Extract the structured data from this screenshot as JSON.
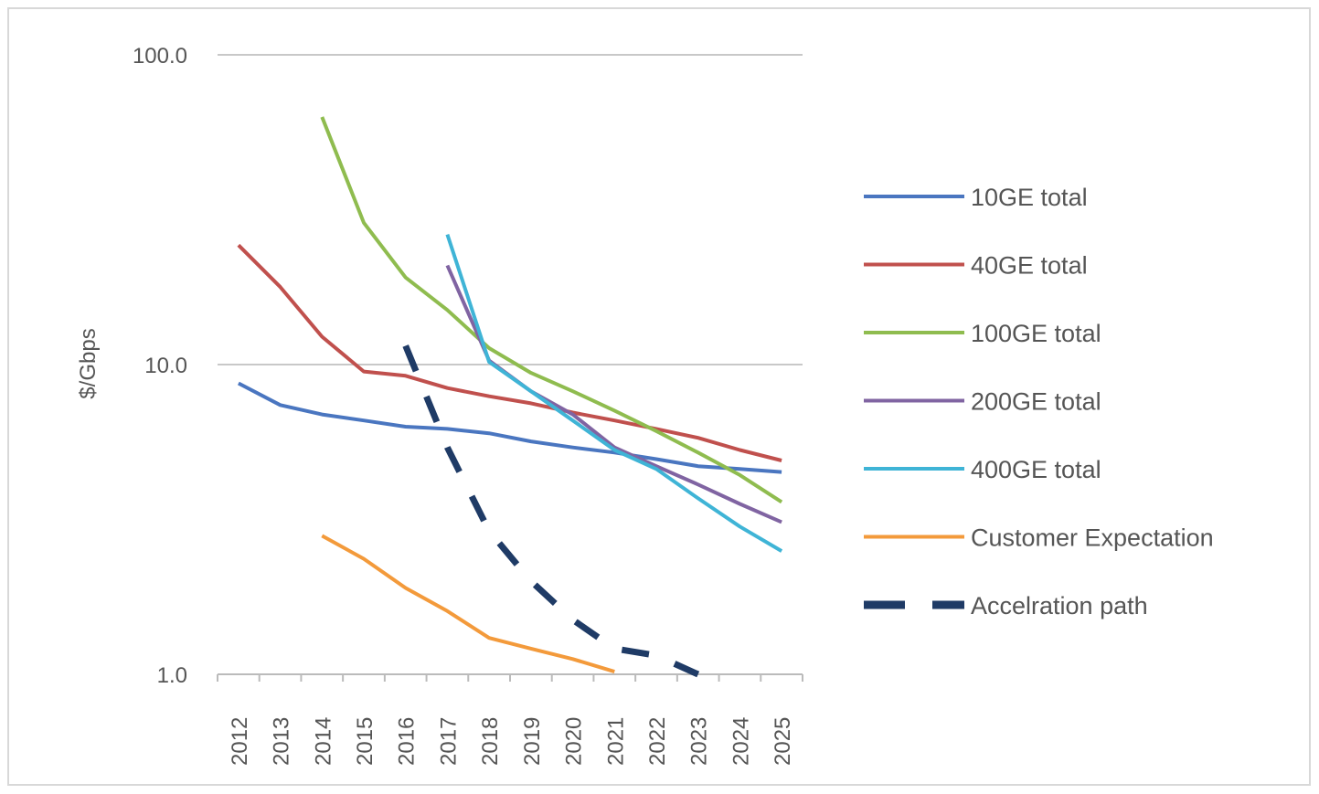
{
  "chart_data": {
    "type": "line",
    "title": "",
    "xlabel": "",
    "ylabel": "$/Gbps",
    "yscale": "log",
    "ylim": [
      1.0,
      100.0
    ],
    "yticks": [
      "1.0",
      "10.0",
      "100.0"
    ],
    "ytick_values": [
      1,
      10,
      100
    ],
    "grid": true,
    "legend_position": "right",
    "x": [
      "2012",
      "2013",
      "2014",
      "2015",
      "2016",
      "2017",
      "2018",
      "2019",
      "2020",
      "2021",
      "2022",
      "2023",
      "2024",
      "2025"
    ],
    "series": [
      {
        "name": "10GE total",
        "color": "#4a76c0",
        "dashed": false,
        "values": [
          8.7,
          7.4,
          6.9,
          6.6,
          6.3,
          6.2,
          6.0,
          5.65,
          5.4,
          5.2,
          4.95,
          4.7,
          4.6,
          4.5
        ]
      },
      {
        "name": "40GE total",
        "color": "#c0504d",
        "dashed": false,
        "values": [
          24.3,
          17.8,
          12.3,
          9.5,
          9.2,
          8.4,
          7.9,
          7.5,
          7.0,
          6.6,
          6.2,
          5.8,
          5.3,
          4.9
        ]
      },
      {
        "name": "100GE total",
        "color": "#8fbc4f",
        "dashed": false,
        "values": [
          null,
          null,
          63,
          28.7,
          19.1,
          15.0,
          11.3,
          9.4,
          8.2,
          7.1,
          6.1,
          5.2,
          4.4,
          3.6
        ]
      },
      {
        "name": "200GE total",
        "color": "#8064a2",
        "dashed": false,
        "values": [
          null,
          null,
          null,
          null,
          null,
          20.9,
          10.3,
          8.2,
          6.9,
          5.4,
          4.7,
          4.1,
          3.55,
          3.1
        ]
      },
      {
        "name": "400GE total",
        "color": "#3fb4d6",
        "dashed": false,
        "values": [
          null,
          null,
          null,
          null,
          null,
          26.3,
          10.2,
          8.2,
          6.6,
          5.3,
          4.6,
          3.7,
          3.0,
          2.5
        ]
      },
      {
        "name": "Customer Expectation",
        "color": "#f39a3b",
        "dashed": false,
        "values": [
          null,
          null,
          2.8,
          2.36,
          1.9,
          1.6,
          1.31,
          1.21,
          1.12,
          1.02,
          null,
          null,
          null,
          null
        ]
      },
      {
        "name": "Accelration path",
        "color": "#1f3b66",
        "dashed": true,
        "values": [
          null,
          null,
          null,
          null,
          11.5,
          5.4,
          2.9,
          2.0,
          1.5,
          1.21,
          1.15,
          1.0,
          null,
          null
        ]
      }
    ]
  }
}
